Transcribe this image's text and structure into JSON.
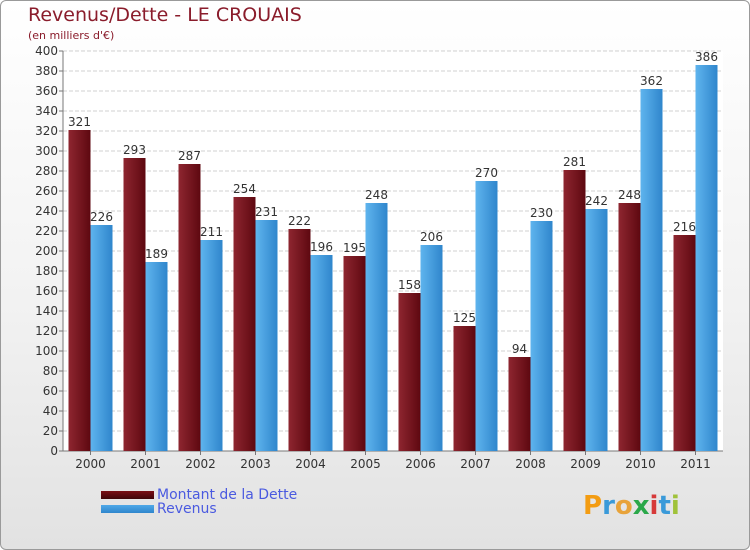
{
  "chart_data": {
    "type": "bar",
    "title": "Revenus/Dette - LE CROUAIS",
    "subtitle": "(en milliers d'€)",
    "categories": [
      "2000",
      "2001",
      "2002",
      "2003",
      "2004",
      "2005",
      "2006",
      "2007",
      "2008",
      "2009",
      "2010",
      "2011"
    ],
    "series": [
      {
        "name": "Montant de la Dette",
        "color": "#7a0f15",
        "values": [
          321,
          293,
          287,
          254,
          222,
          195,
          158,
          125,
          94,
          281,
          248,
          216
        ]
      },
      {
        "name": "Revenus",
        "color": "#4fa8e8",
        "values": [
          226,
          189,
          211,
          231,
          196,
          248,
          206,
          270,
          230,
          242,
          362,
          386
        ]
      }
    ],
    "ylim": [
      0,
      400
    ],
    "yticks": [
      0,
      20,
      40,
      60,
      80,
      100,
      120,
      140,
      160,
      180,
      200,
      220,
      240,
      260,
      280,
      300,
      320,
      340,
      360,
      380,
      400
    ],
    "grid": true,
    "legend": "bottom-left"
  },
  "logo": {
    "text": "Proxiti",
    "letters": [
      {
        "char": "P",
        "color": "#f39c12"
      },
      {
        "char": "r",
        "color": "#3a9ad9"
      },
      {
        "char": "o",
        "color": "#e8a33a"
      },
      {
        "char": "x",
        "color": "#2aa84a"
      },
      {
        "char": "i",
        "color": "#d63a3a"
      },
      {
        "char": "t",
        "color": "#3a9ad9"
      },
      {
        "char": "i",
        "color": "#a0c23a"
      }
    ]
  }
}
